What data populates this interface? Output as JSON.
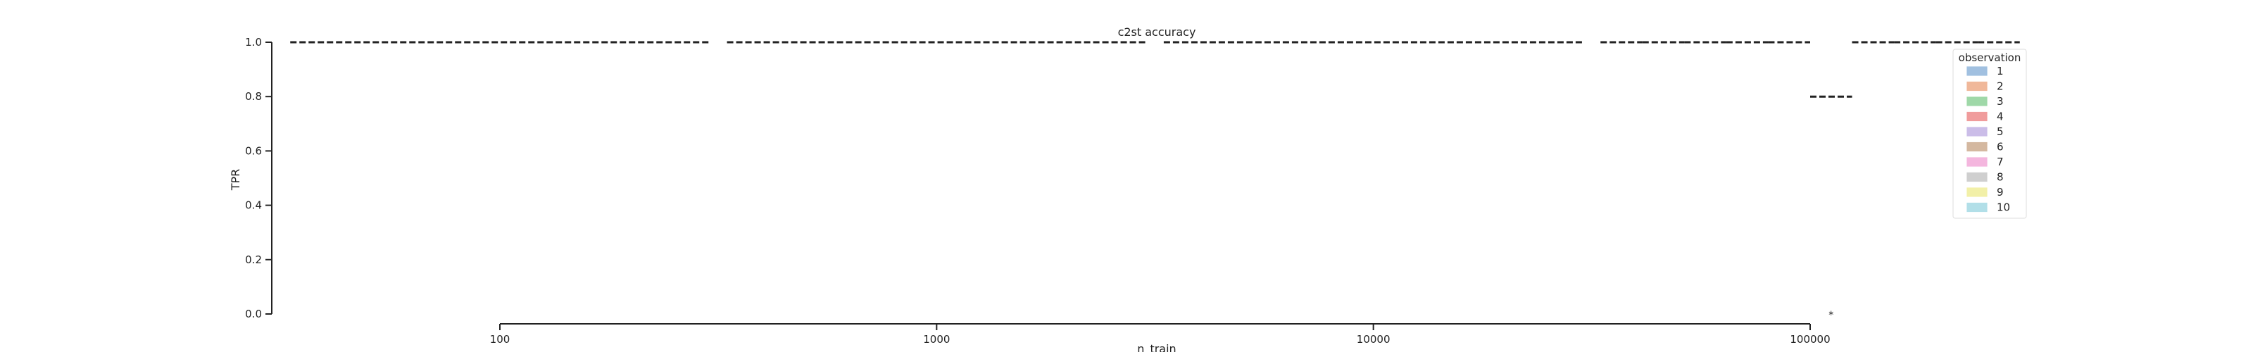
{
  "chart_data": {
    "type": "box",
    "title": "c2st accuracy",
    "xlabel": "n_train",
    "ylabel": "TPR",
    "x_scale": "log",
    "x_ticks": [
      100,
      1000,
      10000,
      100000
    ],
    "x_tick_labels": [
      "100",
      "1000",
      "10000",
      "100000"
    ],
    "ylim": [
      0.0,
      1.0
    ],
    "y_ticks": [
      0.0,
      0.2,
      0.4,
      0.6,
      0.8,
      1.0
    ],
    "y_tick_labels": [
      "0.0",
      "0.2",
      "0.4",
      "0.6",
      "0.8",
      "1.0"
    ],
    "grid": false,
    "legend": {
      "title": "observation",
      "placement": "right",
      "entries": [
        {
          "label": "1",
          "color": "#a1c0e0"
        },
        {
          "label": "2",
          "color": "#f0b89a"
        },
        {
          "label": "3",
          "color": "#9fd8a8"
        },
        {
          "label": "4",
          "color": "#f09c9c"
        },
        {
          "label": "5",
          "color": "#cbbde8"
        },
        {
          "label": "6",
          "color": "#d4b8a0"
        },
        {
          "label": "7",
          "color": "#f4b6de"
        },
        {
          "label": "8",
          "color": "#cfcfcf"
        },
        {
          "label": "9",
          "color": "#f2f0a8"
        },
        {
          "label": "10",
          "color": "#b2dfe8"
        }
      ]
    },
    "groups": [
      {
        "n_train": 100,
        "median": 1.0
      },
      {
        "n_train": 1000,
        "median": 1.0
      },
      {
        "n_train": 10000,
        "median": 1.0
      },
      {
        "n_train": 100000,
        "observations": [
          {
            "observation": "1",
            "median": 1.0
          },
          {
            "observation": "2",
            "median": 1.0
          },
          {
            "observation": "3",
            "median": 1.0
          },
          {
            "observation": "4",
            "median": 1.0
          },
          {
            "observation": "5",
            "median": 1.0
          },
          {
            "observation": "6",
            "median": 0.8,
            "outlier": 0.0
          },
          {
            "observation": "7",
            "median": 1.0
          },
          {
            "observation": "8",
            "median": 1.0
          },
          {
            "observation": "9",
            "median": 1.0
          },
          {
            "observation": "10",
            "median": 1.0
          }
        ]
      }
    ],
    "outlier_marker": "*"
  }
}
